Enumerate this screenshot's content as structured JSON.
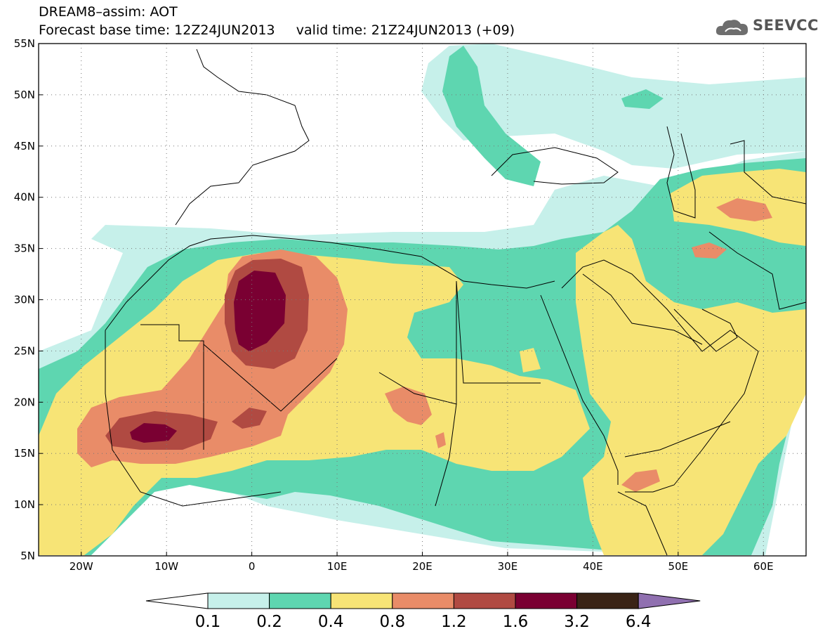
{
  "title": {
    "line1": "DREAM8–assim: AOT",
    "line2": "Forecast base time: 12Z24JUN2013     valid time: 21Z24JUN2013 (+09)"
  },
  "logo": {
    "text": "SEEVCCC",
    "icon": "cloud-icon"
  },
  "map": {
    "lon_range": [
      -25,
      65
    ],
    "lat_range": [
      5,
      55
    ],
    "lat_ticks": [
      "55N",
      "50N",
      "45N",
      "40N",
      "35N",
      "30N",
      "25N",
      "20N",
      "15N",
      "10N",
      "5N"
    ],
    "lat_values": [
      55,
      50,
      45,
      40,
      35,
      30,
      25,
      20,
      15,
      10,
      5
    ],
    "lon_ticks": [
      "20W",
      "10W",
      "0",
      "10E",
      "20E",
      "30E",
      "40E",
      "50E",
      "60E"
    ],
    "lon_values": [
      -20,
      -10,
      0,
      10,
      20,
      30,
      40,
      50,
      60
    ],
    "grid": "dotted"
  },
  "colorbar": {
    "labels": [
      "0.1",
      "0.2",
      "0.4",
      "0.8",
      "1.2",
      "1.6",
      "3.2",
      "6.4"
    ],
    "colors": [
      "#ffffff",
      "#c6f0ea",
      "#5ed6b0",
      "#f7e476",
      "#e98c68",
      "#b04a42",
      "#7a0032",
      "#3a2416",
      "#9070b0"
    ]
  }
}
